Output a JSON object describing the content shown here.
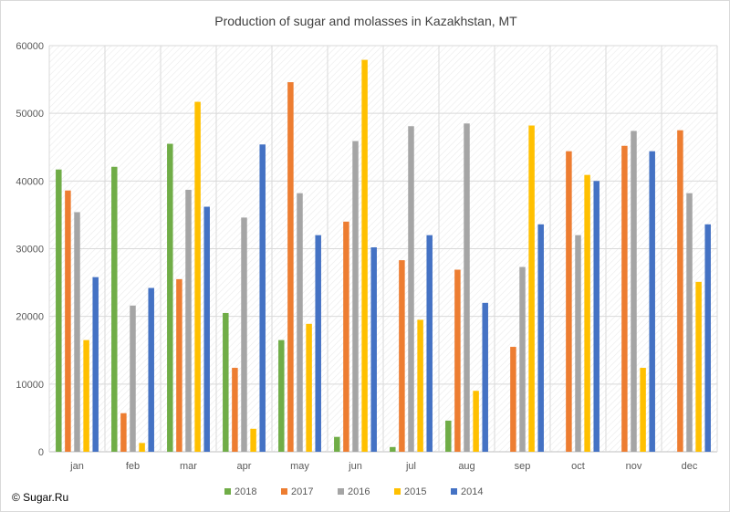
{
  "footer": {
    "copyright": "© Sugar.Ru"
  },
  "chart_data": {
    "type": "bar",
    "title": "Production of sugar and molasses in Kazakhstan, MT",
    "xlabel": "",
    "ylabel": "",
    "ylim": [
      0,
      60000
    ],
    "yticks": [
      0,
      10000,
      20000,
      30000,
      40000,
      50000,
      60000
    ],
    "categories": [
      "jan",
      "feb",
      "mar",
      "apr",
      "may",
      "jun",
      "jul",
      "aug",
      "sep",
      "oct",
      "nov",
      "dec"
    ],
    "grid": true,
    "legend_position": "bottom",
    "series": [
      {
        "name": "2018",
        "color": "#70ad47",
        "values": [
          41700,
          42100,
          45500,
          20500,
          16500,
          2200,
          700,
          4600,
          null,
          null,
          null,
          null
        ]
      },
      {
        "name": "2017",
        "color": "#ed7d31",
        "values": [
          38600,
          5700,
          25500,
          12400,
          54600,
          34000,
          28300,
          26900,
          15500,
          44400,
          45200,
          47500
        ]
      },
      {
        "name": "2016",
        "color": "#a5a5a5",
        "values": [
          35400,
          21600,
          38700,
          34600,
          38200,
          45900,
          48100,
          48500,
          27300,
          32000,
          47400,
          38200
        ]
      },
      {
        "name": "2015",
        "color": "#ffc000",
        "values": [
          16500,
          1300,
          51700,
          3400,
          18900,
          57900,
          19500,
          9000,
          48200,
          40900,
          12400,
          25100
        ]
      },
      {
        "name": "2014",
        "color": "#4472c4",
        "values": [
          25800,
          24200,
          36200,
          45400,
          32000,
          30200,
          32000,
          22000,
          33600,
          40000,
          44400,
          33600
        ]
      }
    ]
  }
}
